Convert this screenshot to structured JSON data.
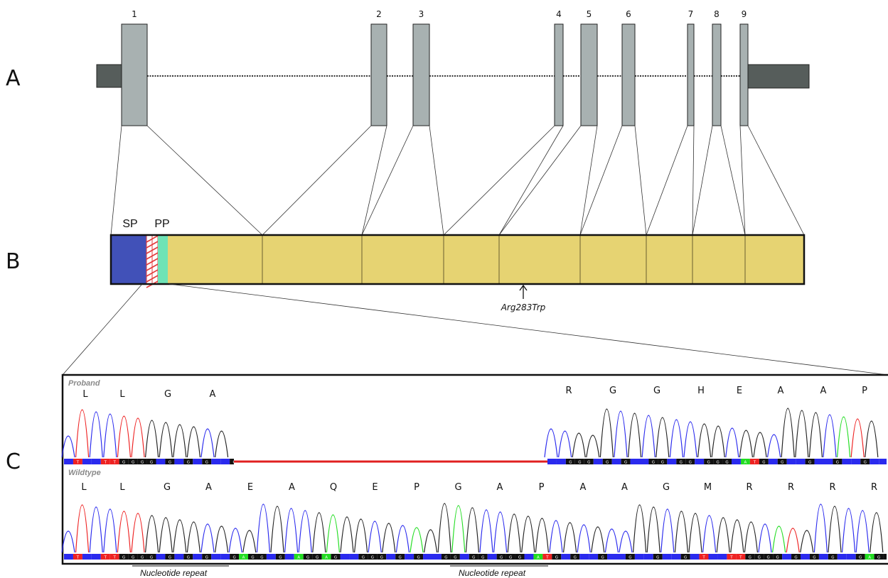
{
  "panels": {
    "a": "A",
    "b": "B",
    "c": "C"
  },
  "gene": {
    "exons": [
      {
        "label": "1"
      },
      {
        "label": "2"
      },
      {
        "label": "3"
      },
      {
        "label": "4"
      },
      {
        "label": "5"
      },
      {
        "label": "6"
      },
      {
        "label": "7"
      },
      {
        "label": "8"
      },
      {
        "label": "9"
      }
    ],
    "colors": {
      "exon": "#a8b1b1",
      "utr": "#565d5b",
      "intron": "#333333"
    }
  },
  "protein": {
    "sp_label": "SP",
    "pp_label": "PP",
    "mutation": "Arg283Trp",
    "colors": {
      "sp": "#4151b8",
      "pp": "#6ee3b6",
      "mature": "#e6d372",
      "repeat": "#e23b3b"
    }
  },
  "chromatogram": {
    "proband_title": "Proband",
    "wildtype_title": "Wildtype",
    "proband_aa_left": [
      "L",
      "L",
      "G",
      "A"
    ],
    "proband_aa_right": [
      "R",
      "G",
      "G",
      "H",
      "E",
      "A",
      "A",
      "P"
    ],
    "wildtype_aa": [
      "L",
      "L",
      "G",
      "A",
      "E",
      "A",
      "Q",
      "E",
      "P",
      "G",
      "A",
      "P",
      "A",
      "A",
      "G",
      "M",
      "R",
      "R",
      "R",
      "R"
    ],
    "repeat_label_1": "Nucleotide repeat",
    "repeat_label_2": "Nucleotide repeat",
    "colors": {
      "A": "#22dd22",
      "C": "#2a2aee",
      "G": "#222222",
      "T": "#ee2222",
      "deletion": "#e02020"
    }
  }
}
